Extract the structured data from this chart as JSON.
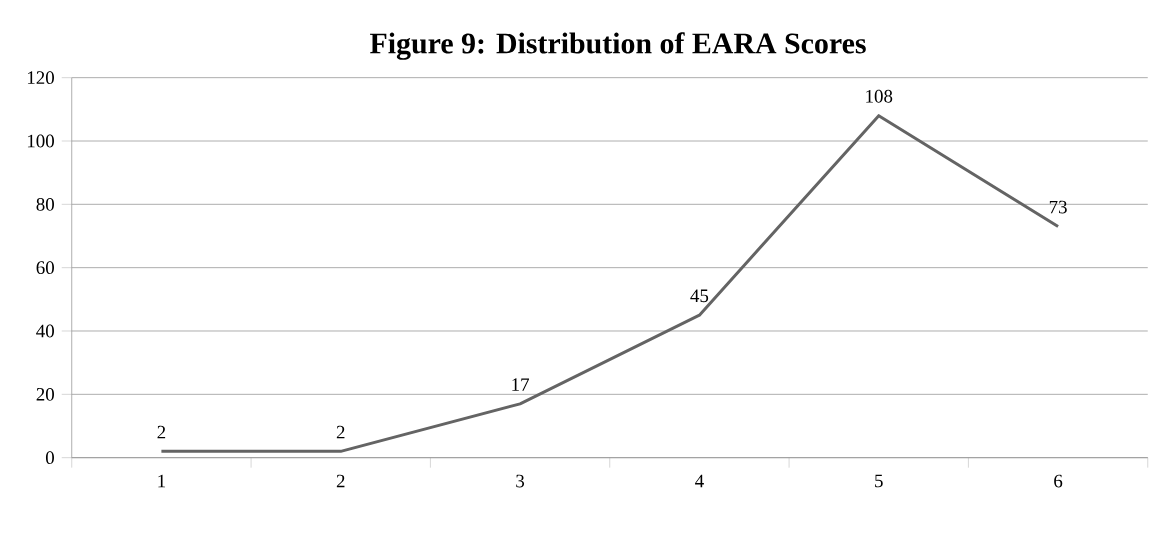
{
  "chart_data": {
    "type": "line",
    "title": "Figure 9: Distribution of EARA Scores",
    "categories": [
      "1",
      "2",
      "3",
      "4",
      "5",
      "6"
    ],
    "values": [
      2,
      2,
      17,
      45,
      108,
      73
    ],
    "color": "#646464",
    "ylim": [
      0,
      120
    ],
    "yticks": [
      0,
      20,
      40,
      60,
      80,
      100,
      120
    ],
    "grid": "y",
    "data_labels": true,
    "marker": "none",
    "line_style": "solid"
  }
}
